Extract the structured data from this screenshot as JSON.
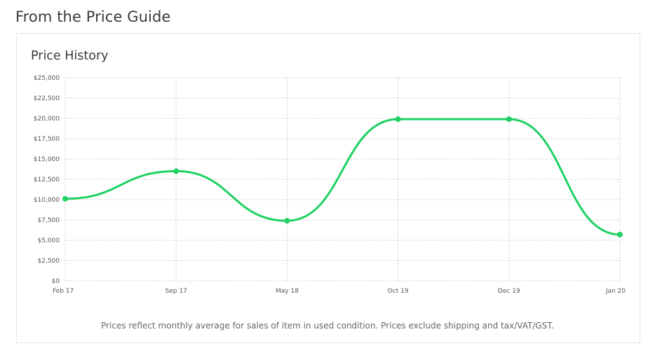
{
  "page": {
    "section_title": "From the Price Guide",
    "card_title": "Price History",
    "footnote": "Prices reflect monthly average for sales of item in used condition. Prices exclude shipping and tax/VAT/GST."
  },
  "colors": {
    "line": "#1fd163",
    "grid": "#cfcfcf"
  },
  "chart_data": {
    "type": "line",
    "title": "Price History",
    "categories": [
      "Feb 17",
      "Sep 17",
      "May 18",
      "Oct 19",
      "Dec 19",
      "Jan 20"
    ],
    "series": [
      {
        "values": [
          10100,
          13500,
          7400,
          19900,
          19900,
          5700
        ]
      }
    ],
    "ylim": [
      0,
      25000
    ],
    "yticks": [
      0,
      2500,
      5000,
      7500,
      10000,
      12500,
      15000,
      17500,
      20000,
      22500,
      25000
    ],
    "ytick_labels": [
      "$0",
      "$2,500",
      "$5,000",
      "$7,500",
      "$10,000",
      "$12,500",
      "$15,000",
      "$17,500",
      "$20,000",
      "$22,500",
      "$25,000"
    ],
    "grid": true,
    "curve": "smooth"
  }
}
